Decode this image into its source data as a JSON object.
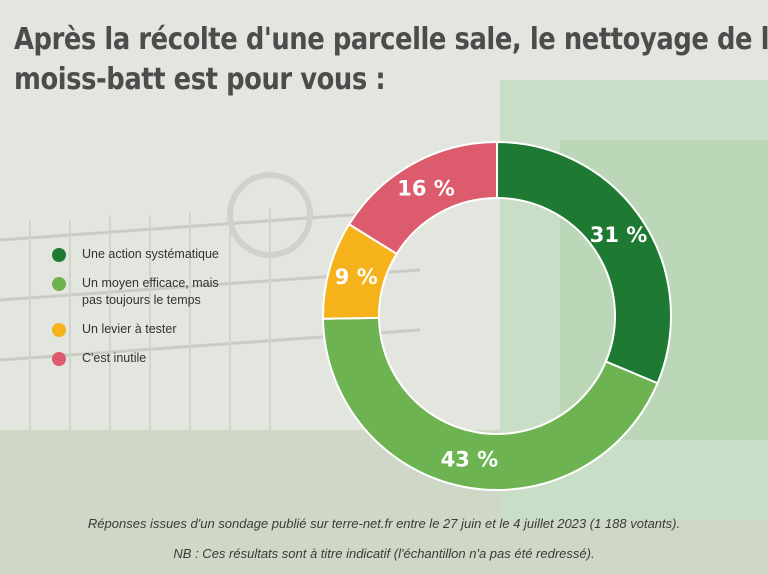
{
  "title": {
    "line1": "Après la récolte d'une parcelle sale, le nettoyage de la",
    "line2": "moiss-batt est pour vous :"
  },
  "chart_data": {
    "type": "pie",
    "donut": true,
    "title": "Après la récolte d'une parcelle sale, le nettoyage de la moiss-batt est pour vous :",
    "categories": [
      "Une action systématique",
      "Un moyen efficace, mais pas toujours le temps",
      "Un levier à tester",
      "C'est inutile"
    ],
    "values": [
      31,
      43,
      9,
      16
    ],
    "labels": [
      "31 %",
      "43 %",
      "9 %",
      "16 %"
    ],
    "colors": [
      "#1e7a32",
      "#6db352",
      "#f5b21b",
      "#dc5b6c"
    ],
    "legend_position": "left"
  },
  "legend": [
    {
      "label": "Une action systématique",
      "color": "#1e7a32"
    },
    {
      "label": "Un moyen efficace, mais pas toujours le temps",
      "color": "#6db352"
    },
    {
      "label": "Un levier à tester",
      "color": "#f5b21b"
    },
    {
      "label": "C'est inutile",
      "color": "#dc5b6c"
    }
  ],
  "footnotes": {
    "source": "Réponses issues d'un sondage publié sur terre-net.fr entre le 27 juin et le 4 juillet 2023 (1 188 votants).",
    "note": "NB : Ces résultats sont à titre indicatif (l'échantillon n'a pas été redressé)."
  }
}
